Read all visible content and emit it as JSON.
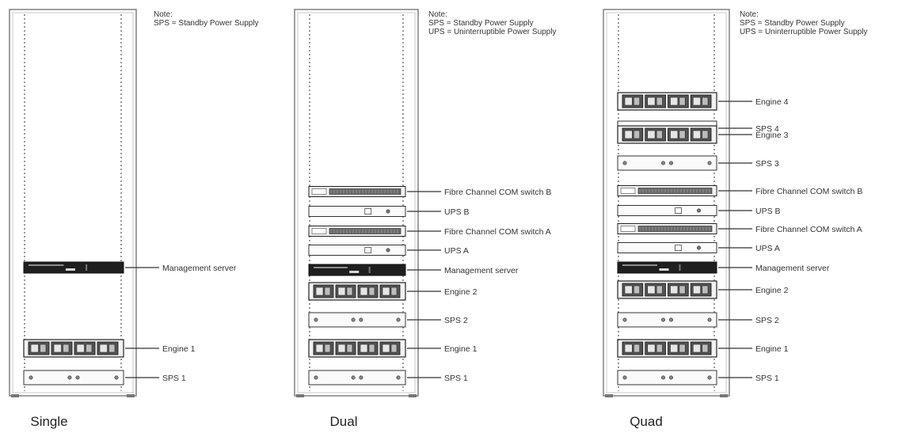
{
  "notes": {
    "single": {
      "heading": "Note:",
      "lines": [
        "SPS = Standby Power Supply"
      ]
    },
    "dual": {
      "heading": "Note:",
      "lines": [
        "SPS = Standby Power Supply",
        "UPS = Uninterruptible Power Supply"
      ]
    },
    "quad": {
      "heading": "Note:",
      "lines": [
        "SPS = Standby Power Supply",
        "UPS = Uninterruptible Power Supply"
      ]
    }
  },
  "racks": [
    {
      "id": "single",
      "caption": "Single",
      "units": [
        {
          "kind": "mgmt",
          "label": "Management server"
        },
        {
          "kind": "engine",
          "label": "Engine 1"
        },
        {
          "kind": "sps",
          "label": "SPS  1"
        }
      ]
    },
    {
      "id": "dual",
      "caption": "Dual",
      "units": [
        {
          "kind": "fc",
          "label": "Fibre Channel COM switch B"
        },
        {
          "kind": "ups",
          "label": "UPS B"
        },
        {
          "kind": "fc",
          "label": "Fibre Channel COM switch A"
        },
        {
          "kind": "ups",
          "label": "UPS A"
        },
        {
          "kind": "mgmt",
          "label": "Management server"
        },
        {
          "kind": "engine",
          "label": "Engine 2"
        },
        {
          "kind": "sps",
          "label": "SPS 2"
        },
        {
          "kind": "engine",
          "label": "Engine 1"
        },
        {
          "kind": "sps",
          "label": "SPS 1"
        }
      ]
    },
    {
      "id": "quad",
      "caption": "Quad",
      "units": [
        {
          "kind": "engine",
          "label": "Engine 4"
        },
        {
          "kind": "sps",
          "label": "SPS 4"
        },
        {
          "kind": "engine",
          "label": "Engine 3"
        },
        {
          "kind": "sps",
          "label": "SPS 3"
        },
        {
          "kind": "fc",
          "label": "Fibre Channel COM switch B"
        },
        {
          "kind": "ups",
          "label": "UPS B"
        },
        {
          "kind": "fc",
          "label": "Fibre Channel COM switch A"
        },
        {
          "kind": "ups",
          "label": "UPS A"
        },
        {
          "kind": "mgmt",
          "label": "Management server"
        },
        {
          "kind": "engine",
          "label": "Engine 2"
        },
        {
          "kind": "sps",
          "label": "SPS 2"
        },
        {
          "kind": "engine",
          "label": "Engine 1"
        },
        {
          "kind": "sps",
          "label": "SPS 1"
        }
      ]
    }
  ]
}
